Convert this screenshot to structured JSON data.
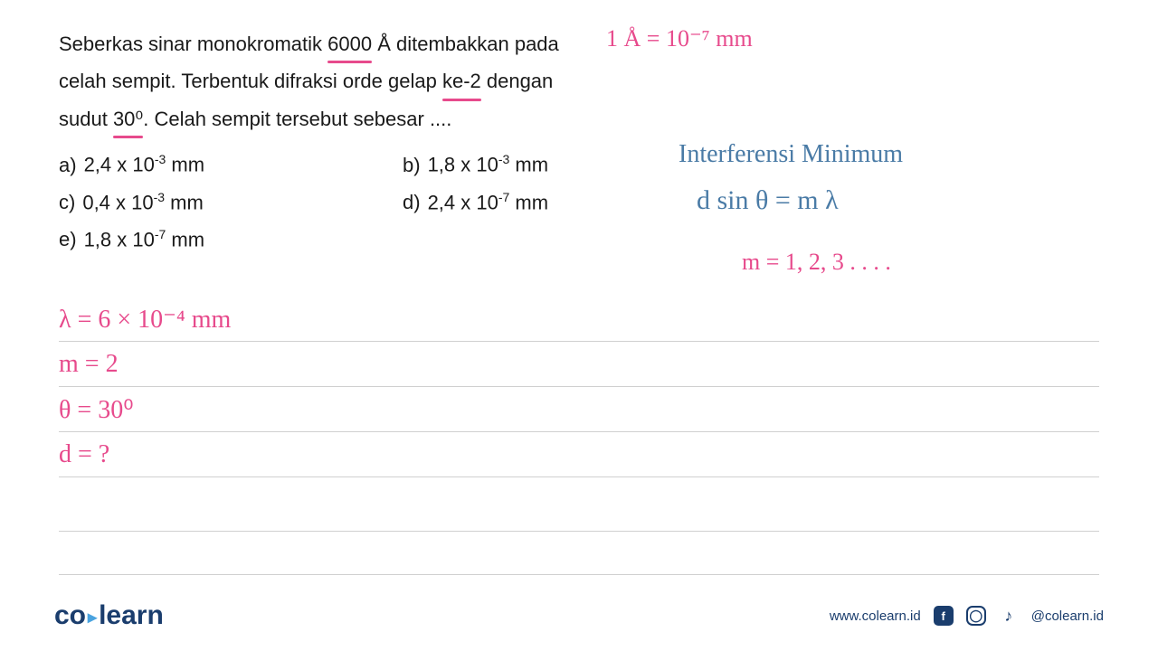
{
  "question": {
    "line1_part1": "Seberkas sinar monokromatik ",
    "line1_underlined": "6000",
    "line1_part2": " Å ditembakkan pada",
    "line2_part1": "celah sempit. Terbentuk difraksi orde gelap ",
    "line2_underlined": "ke-2",
    "line2_part2": " dengan",
    "line3_part1": "sudut ",
    "line3_underlined": "30⁰",
    "line3_part2": ". Celah sempit tersebut sebesar ...."
  },
  "options": {
    "a": {
      "label": "a)",
      "value": "2,4 x 10",
      "exp": "-3",
      "unit": " mm"
    },
    "b": {
      "label": "b)",
      "value": "1,8 x 10",
      "exp": "-3",
      "unit": " mm"
    },
    "c": {
      "label": "c)",
      "value": "0,4 x 10",
      "exp": "-3",
      "unit": " mm"
    },
    "d": {
      "label": "d)",
      "value": "2,4 x 10",
      "exp": "-7",
      "unit": " mm"
    },
    "e": {
      "label": "e)",
      "value": "1,8 x 10",
      "exp": "-7",
      "unit": " mm"
    }
  },
  "handwriting": {
    "top_conversion": "1 Å = 10⁻⁷ mm",
    "interferensi": "Interferensi Minimum",
    "formula": "d sin θ  = m λ",
    "m_values": "m = 1, 2, 3 . . . .",
    "given_lambda": "λ  =  6 × 10⁻⁴ mm",
    "given_m": "m  =  2",
    "given_theta": "θ   = 30⁰",
    "given_d": "d  = ?"
  },
  "footer": {
    "logo_part1": "co",
    "logo_part2": "learn",
    "url": "www.colearn.id",
    "handle": "@colearn.id"
  },
  "colors": {
    "pink": "#e74a8c",
    "blue": "#4a7ba6",
    "text": "#1a1a1a",
    "brand": "#1a3d6d",
    "brand_accent": "#4aa3df",
    "line": "#d0d0d0",
    "background": "#ffffff"
  }
}
